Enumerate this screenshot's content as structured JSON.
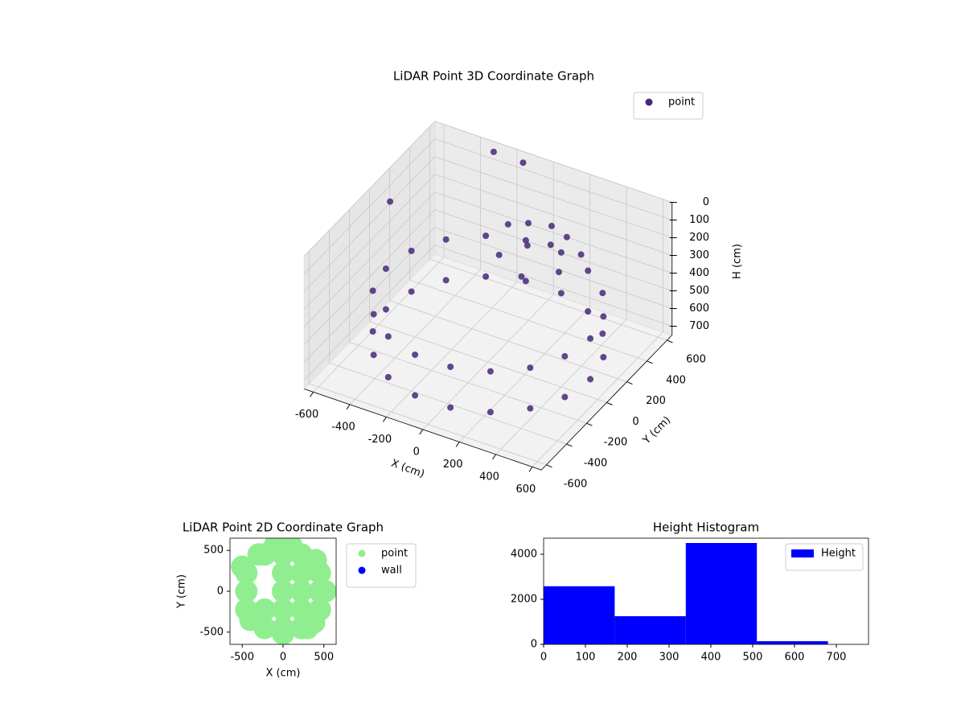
{
  "chart_data": [
    {
      "type": "scatter3d",
      "title": "LiDAR Point 3D Coordinate Graph",
      "xlabel": "X (cm)",
      "ylabel": "Y (cm)",
      "zlabel": "H (cm)",
      "xlim": [
        -650,
        650
      ],
      "ylim": [
        -650,
        650
      ],
      "zlim": [
        0,
        750
      ],
      "xticks": [
        -600,
        -400,
        -200,
        0,
        200,
        400,
        600
      ],
      "yticks": [
        -600,
        -400,
        -200,
        0,
        200,
        400,
        600
      ],
      "zticks": [
        0,
        100,
        200,
        300,
        400,
        500,
        600,
        700
      ],
      "grid": true,
      "legend": "upper right",
      "series": [
        {
          "name": "point",
          "color": "#482878",
          "x": [
            560,
            526,
            429,
            280,
            97,
            -97,
            -280,
            -429,
            -526,
            -560,
            -526,
            -429,
            -280,
            -97,
            97,
            280,
            429,
            526,
            560,
            526,
            429,
            280,
            97,
            -97,
            -280,
            -429,
            -526,
            -560,
            -526,
            -429,
            -280,
            -97,
            97,
            280,
            429,
            526,
            0,
            100,
            200,
            -100,
            50,
            150,
            300,
            -50,
            250,
            100,
            -620,
            -300,
            -150
          ],
          "y": [
            0,
            192,
            360,
            485,
            551,
            551,
            485,
            360,
            192,
            0,
            -192,
            -360,
            -485,
            -551,
            -551,
            -485,
            -360,
            -192,
            0,
            192,
            360,
            485,
            551,
            551,
            485,
            360,
            192,
            0,
            -192,
            -360,
            -485,
            -551,
            -551,
            -485,
            -360,
            -192,
            400,
            450,
            420,
            380,
            300,
            350,
            380,
            200,
            250,
            150,
            150,
            600,
            620
          ],
          "z": [
            420,
            420,
            420,
            420,
            420,
            420,
            420,
            420,
            420,
            420,
            420,
            420,
            420,
            420,
            420,
            420,
            420,
            420,
            650,
            650,
            650,
            650,
            650,
            650,
            650,
            650,
            650,
            650,
            650,
            650,
            650,
            650,
            650,
            650,
            650,
            650,
            200,
            210,
            220,
            230,
            250,
            240,
            260,
            280,
            300,
            320,
            150,
            20,
            40
          ]
        }
      ]
    },
    {
      "type": "scatter",
      "title": "LiDAR Point 2D Coordinate Graph",
      "xlabel": "X (cm)",
      "ylabel": "Y (cm)",
      "xlim": [
        -650,
        650
      ],
      "ylim": [
        -650,
        650
      ],
      "xticks": [
        -500,
        0,
        500
      ],
      "yticks": [
        -500,
        0,
        500
      ],
      "legend": "outside upper right",
      "series": [
        {
          "name": "point",
          "color": "#90ee90",
          "x": [
            -225,
            0,
            225,
            -450,
            0,
            225,
            450,
            -450,
            0,
            225,
            450,
            -450,
            -225,
            0,
            225,
            450,
            -225,
            0,
            225,
            -500,
            -400,
            0,
            520,
            0,
            300,
            -300,
            400,
            380,
            -100,
            100
          ],
          "y": [
            450,
            450,
            450,
            225,
            225,
            225,
            225,
            0,
            0,
            0,
            0,
            -225,
            -225,
            -225,
            -225,
            -225,
            -450,
            -450,
            -450,
            300,
            -350,
            520,
            0,
            -520,
            -450,
            450,
            380,
            -380,
            560,
            560
          ]
        },
        {
          "name": "wall",
          "color": "#0000ff",
          "x": [],
          "y": []
        }
      ]
    },
    {
      "type": "histogram",
      "title": "Height Histogram",
      "xlim": [
        0,
        777
      ],
      "ylim": [
        0,
        4714
      ],
      "xticks": [
        0,
        100,
        200,
        300,
        400,
        500,
        600,
        700
      ],
      "yticks": [
        0,
        2000,
        4000
      ],
      "legend": "upper right",
      "series": [
        {
          "name": "Height",
          "color": "#0000ff",
          "bins": [
            0,
            170,
            340,
            510,
            680
          ],
          "counts": [
            2580,
            1250,
            4500,
            140
          ]
        }
      ]
    }
  ]
}
